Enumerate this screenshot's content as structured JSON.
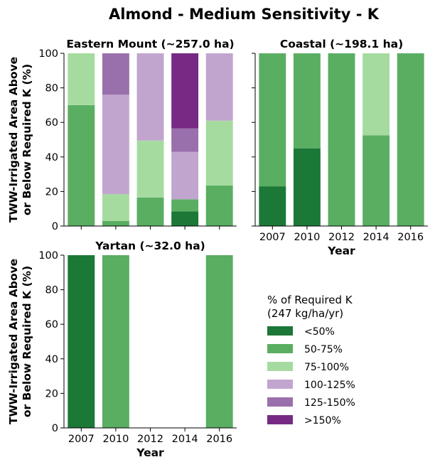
{
  "title": "Almond - Medium Sensitivity - K",
  "colors": {
    "<50%": "#1b7837",
    "50-75%": "#5aae61",
    "75-100%": "#a6dba0",
    "100-125%": "#c2a5cf",
    "125-150%": "#9970ab",
    ">150%": "#762a83"
  },
  "legend": {
    "title_line1": "% of Required K",
    "title_line2": "(247 kg/ha/yr)",
    "items": [
      "<50%",
      "50-75%",
      "75-100%",
      "100-125%",
      "125-150%",
      ">150%"
    ]
  },
  "chart_data": [
    {
      "type": "bar",
      "stacked": true,
      "title": "Eastern Mount (~257.0 ha)",
      "ylabel": "TWW-Irrigated Area Above or Below Required K (%)",
      "ylabel_lines": [
        "TWW-Irrigated Area Above",
        "or Below Required K (%)"
      ],
      "xlabel": "",
      "categories": [
        "2007",
        "2010",
        "2012",
        "2014",
        "2016"
      ],
      "show_xticklabels": false,
      "ylim": [
        0,
        100
      ],
      "yticks": [
        0,
        20,
        40,
        60,
        80,
        100
      ],
      "series": [
        {
          "name": "<50%",
          "values": [
            0,
            0,
            0,
            8.5,
            0
          ]
        },
        {
          "name": "50-75%",
          "values": [
            70,
            3,
            16.5,
            7,
            23.5
          ]
        },
        {
          "name": "75-100%",
          "values": [
            30,
            15.5,
            33,
            0,
            37.5
          ]
        },
        {
          "name": "100-125%",
          "values": [
            0,
            57.5,
            50.5,
            27.5,
            39
          ]
        },
        {
          "name": "125-150%",
          "values": [
            0,
            24,
            0,
            13.5,
            0
          ]
        },
        {
          "name": ">150%",
          "values": [
            0,
            0,
            0,
            43.5,
            0
          ]
        }
      ]
    },
    {
      "type": "bar",
      "stacked": true,
      "title": "Coastal (~198.1 ha)",
      "ylabel": "",
      "xlabel": "Year",
      "categories": [
        "2007",
        "2010",
        "2012",
        "2014",
        "2016"
      ],
      "show_xticklabels": true,
      "show_yticklabels": false,
      "ylim": [
        0,
        100
      ],
      "yticks": [
        0,
        20,
        40,
        60,
        80,
        100
      ],
      "series": [
        {
          "name": "<50%",
          "values": [
            23,
            45,
            0,
            0,
            0
          ]
        },
        {
          "name": "50-75%",
          "values": [
            77,
            55,
            100,
            52.5,
            100
          ]
        },
        {
          "name": "75-100%",
          "values": [
            0,
            0,
            0,
            47.5,
            0
          ]
        }
      ]
    },
    {
      "type": "bar",
      "stacked": true,
      "title": "Yartan (~32.0 ha)",
      "ylabel": "TWW-Irrigated Area Above or Below Required K (%)",
      "ylabel_lines": [
        "TWW-Irrigated Area Above",
        "or Below Required K (%)"
      ],
      "xlabel": "Year",
      "categories": [
        "2007",
        "2010",
        "2012",
        "2014",
        "2016"
      ],
      "show_xticklabels": true,
      "ylim": [
        0,
        100
      ],
      "yticks": [
        0,
        20,
        40,
        60,
        80,
        100
      ],
      "series": [
        {
          "name": "<50%",
          "values": [
            100,
            0,
            0,
            0,
            0
          ]
        },
        {
          "name": "50-75%",
          "values": [
            0,
            100,
            0,
            0,
            100
          ]
        }
      ]
    }
  ]
}
